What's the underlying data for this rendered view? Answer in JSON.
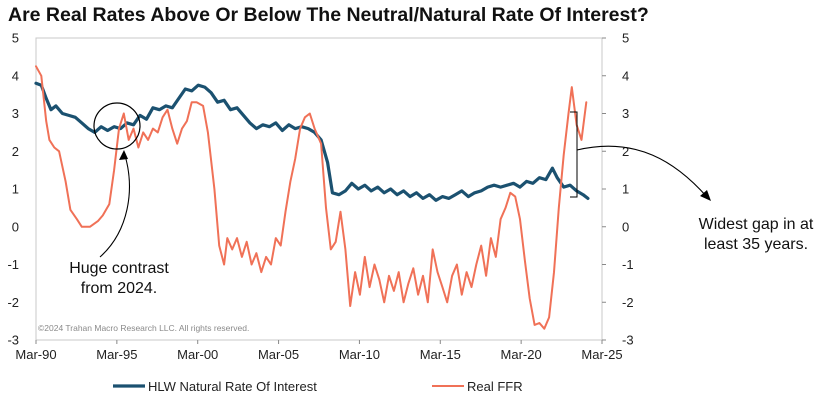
{
  "chart_data": {
    "type": "line",
    "title": "Are Real Rates Above Or Below The Neutral/Natural Rate Of Interest?",
    "x_ticks": [
      "Mar-90",
      "Mar-95",
      "Mar-00",
      "Mar-05",
      "Mar-10",
      "Mar-15",
      "Mar-20",
      "Mar-25"
    ],
    "xlim": [
      1990.17,
      2025.17
    ],
    "ylim": [
      -3,
      5
    ],
    "y_ticks": [
      5,
      4,
      3,
      2,
      1,
      0,
      -1,
      -2,
      -3
    ],
    "secondary_ylim": [
      -3,
      5
    ],
    "grid": false,
    "legend_position": "bottom",
    "series": [
      {
        "name": "HLW Natural Rate Of Interest",
        "color": "#1b5170",
        "points": [
          [
            1990.17,
            3.8
          ],
          [
            1990.5,
            3.75
          ],
          [
            1990.8,
            3.4
          ],
          [
            1991.1,
            3.1
          ],
          [
            1991.4,
            3.2
          ],
          [
            1991.8,
            3.0
          ],
          [
            1992.2,
            2.95
          ],
          [
            1992.6,
            2.9
          ],
          [
            1993.0,
            2.75
          ],
          [
            1993.4,
            2.6
          ],
          [
            1993.8,
            2.5
          ],
          [
            1994.2,
            2.65
          ],
          [
            1994.6,
            2.55
          ],
          [
            1995.0,
            2.65
          ],
          [
            1995.4,
            2.6
          ],
          [
            1995.8,
            2.75
          ],
          [
            1996.2,
            2.7
          ],
          [
            1996.6,
            2.95
          ],
          [
            1997.0,
            2.85
          ],
          [
            1997.4,
            3.15
          ],
          [
            1997.8,
            3.1
          ],
          [
            1998.2,
            3.2
          ],
          [
            1998.6,
            3.15
          ],
          [
            1999.0,
            3.4
          ],
          [
            1999.4,
            3.65
          ],
          [
            1999.8,
            3.6
          ],
          [
            2000.2,
            3.75
          ],
          [
            2000.6,
            3.7
          ],
          [
            2001.0,
            3.55
          ],
          [
            2001.4,
            3.3
          ],
          [
            2001.8,
            3.35
          ],
          [
            2002.2,
            3.1
          ],
          [
            2002.6,
            3.15
          ],
          [
            2003.0,
            2.95
          ],
          [
            2003.4,
            2.75
          ],
          [
            2003.8,
            2.6
          ],
          [
            2004.2,
            2.7
          ],
          [
            2004.6,
            2.65
          ],
          [
            2005.0,
            2.75
          ],
          [
            2005.4,
            2.55
          ],
          [
            2005.8,
            2.7
          ],
          [
            2006.2,
            2.6
          ],
          [
            2006.6,
            2.65
          ],
          [
            2007.0,
            2.6
          ],
          [
            2007.4,
            2.5
          ],
          [
            2007.8,
            2.3
          ],
          [
            2008.2,
            1.7
          ],
          [
            2008.5,
            0.9
          ],
          [
            2008.9,
            0.85
          ],
          [
            2009.3,
            0.95
          ],
          [
            2009.7,
            1.15
          ],
          [
            2010.1,
            1.0
          ],
          [
            2010.5,
            1.1
          ],
          [
            2010.9,
            0.95
          ],
          [
            2011.3,
            1.05
          ],
          [
            2011.7,
            0.9
          ],
          [
            2012.1,
            1.0
          ],
          [
            2012.5,
            0.85
          ],
          [
            2012.9,
            0.95
          ],
          [
            2013.3,
            0.8
          ],
          [
            2013.7,
            0.9
          ],
          [
            2014.1,
            0.75
          ],
          [
            2014.5,
            0.85
          ],
          [
            2014.9,
            0.7
          ],
          [
            2015.3,
            0.8
          ],
          [
            2015.7,
            0.75
          ],
          [
            2016.1,
            0.85
          ],
          [
            2016.5,
            0.95
          ],
          [
            2016.9,
            0.8
          ],
          [
            2017.3,
            0.9
          ],
          [
            2017.7,
            0.95
          ],
          [
            2018.1,
            1.05
          ],
          [
            2018.5,
            1.1
          ],
          [
            2018.9,
            1.05
          ],
          [
            2019.3,
            1.1
          ],
          [
            2019.7,
            1.15
          ],
          [
            2020.1,
            1.05
          ],
          [
            2020.5,
            1.2
          ],
          [
            2020.9,
            1.15
          ],
          [
            2021.3,
            1.3
          ],
          [
            2021.7,
            1.25
          ],
          [
            2022.1,
            1.55
          ],
          [
            2022.4,
            1.3
          ],
          [
            2022.8,
            1.05
          ],
          [
            2023.2,
            1.1
          ],
          [
            2023.6,
            0.95
          ],
          [
            2024.0,
            0.85
          ],
          [
            2024.3,
            0.75
          ]
        ]
      },
      {
        "name": "Real FFR",
        "color": "#f07157",
        "points": [
          [
            1990.17,
            4.25
          ],
          [
            1990.5,
            4.0
          ],
          [
            1990.8,
            2.8
          ],
          [
            1991.0,
            2.3
          ],
          [
            1991.3,
            2.1
          ],
          [
            1991.6,
            2.0
          ],
          [
            1992.0,
            1.2
          ],
          [
            1992.3,
            0.45
          ],
          [
            1992.7,
            0.2
          ],
          [
            1993.0,
            0.0
          ],
          [
            1993.5,
            0.0
          ],
          [
            1994.0,
            0.15
          ],
          [
            1994.3,
            0.3
          ],
          [
            1994.7,
            0.6
          ],
          [
            1995.0,
            1.5
          ],
          [
            1995.3,
            2.6
          ],
          [
            1995.6,
            3.0
          ],
          [
            1995.9,
            2.3
          ],
          [
            1996.2,
            2.6
          ],
          [
            1996.5,
            2.1
          ],
          [
            1996.8,
            2.5
          ],
          [
            1997.1,
            2.3
          ],
          [
            1997.4,
            2.6
          ],
          [
            1997.7,
            2.5
          ],
          [
            1998.0,
            2.9
          ],
          [
            1998.3,
            3.1
          ],
          [
            1998.6,
            2.6
          ],
          [
            1998.9,
            2.2
          ],
          [
            1999.2,
            2.6
          ],
          [
            1999.5,
            2.8
          ],
          [
            1999.8,
            3.3
          ],
          [
            2000.1,
            3.3
          ],
          [
            2000.5,
            3.2
          ],
          [
            2000.8,
            2.5
          ],
          [
            2001.2,
            1.0
          ],
          [
            2001.5,
            -0.5
          ],
          [
            2001.8,
            -1.0
          ],
          [
            2002.0,
            -0.3
          ],
          [
            2002.3,
            -0.6
          ],
          [
            2002.6,
            -0.3
          ],
          [
            2002.9,
            -0.8
          ],
          [
            2003.2,
            -0.4
          ],
          [
            2003.5,
            -1.0
          ],
          [
            2003.8,
            -0.7
          ],
          [
            2004.1,
            -1.2
          ],
          [
            2004.4,
            -0.8
          ],
          [
            2004.7,
            -1.0
          ],
          [
            2005.0,
            -0.3
          ],
          [
            2005.3,
            -0.5
          ],
          [
            2005.6,
            0.4
          ],
          [
            2005.9,
            1.2
          ],
          [
            2006.2,
            1.8
          ],
          [
            2006.5,
            2.6
          ],
          [
            2006.8,
            2.9
          ],
          [
            2007.1,
            3.0
          ],
          [
            2007.4,
            2.6
          ],
          [
            2007.8,
            2.2
          ],
          [
            2008.1,
            0.5
          ],
          [
            2008.4,
            -0.6
          ],
          [
            2008.7,
            -0.4
          ],
          [
            2009.0,
            0.4
          ],
          [
            2009.3,
            -0.6
          ],
          [
            2009.6,
            -2.1
          ],
          [
            2009.9,
            -1.2
          ],
          [
            2010.2,
            -1.8
          ],
          [
            2010.5,
            -0.8
          ],
          [
            2010.8,
            -1.6
          ],
          [
            2011.1,
            -1.0
          ],
          [
            2011.4,
            -1.4
          ],
          [
            2011.7,
            -2.0
          ],
          [
            2012.0,
            -1.3
          ],
          [
            2012.3,
            -1.7
          ],
          [
            2012.6,
            -1.2
          ],
          [
            2012.9,
            -2.0
          ],
          [
            2013.2,
            -1.5
          ],
          [
            2013.5,
            -1.1
          ],
          [
            2013.8,
            -1.8
          ],
          [
            2014.1,
            -1.3
          ],
          [
            2014.4,
            -2.0
          ],
          [
            2014.7,
            -0.6
          ],
          [
            2015.0,
            -1.2
          ],
          [
            2015.3,
            -1.6
          ],
          [
            2015.6,
            -2.0
          ],
          [
            2015.9,
            -1.3
          ],
          [
            2016.2,
            -1.0
          ],
          [
            2016.5,
            -1.8
          ],
          [
            2016.8,
            -1.2
          ],
          [
            2017.1,
            -1.6
          ],
          [
            2017.4,
            -1.0
          ],
          [
            2017.7,
            -0.5
          ],
          [
            2018.0,
            -1.3
          ],
          [
            2018.3,
            -0.3
          ],
          [
            2018.6,
            -0.8
          ],
          [
            2018.9,
            0.2
          ],
          [
            2019.2,
            0.5
          ],
          [
            2019.5,
            0.9
          ],
          [
            2019.8,
            0.8
          ],
          [
            2020.1,
            0.2
          ],
          [
            2020.4,
            -0.9
          ],
          [
            2020.7,
            -1.9
          ],
          [
            2021.0,
            -2.6
          ],
          [
            2021.3,
            -2.55
          ],
          [
            2021.6,
            -2.7
          ],
          [
            2021.9,
            -2.4
          ],
          [
            2022.2,
            -1.2
          ],
          [
            2022.5,
            0.5
          ],
          [
            2022.8,
            1.9
          ],
          [
            2023.1,
            3.0
          ],
          [
            2023.3,
            3.7
          ],
          [
            2023.6,
            2.7
          ],
          [
            2023.9,
            2.3
          ],
          [
            2024.2,
            3.3
          ]
        ]
      }
    ]
  },
  "annotations": {
    "left_line1": "Huge contrast",
    "left_line2": "from 2024.",
    "right_line1": "Widest gap in at",
    "right_line2": "least 35 years."
  },
  "copyright": "©2024 Trahan Macro Research LLC. All rights reserved."
}
